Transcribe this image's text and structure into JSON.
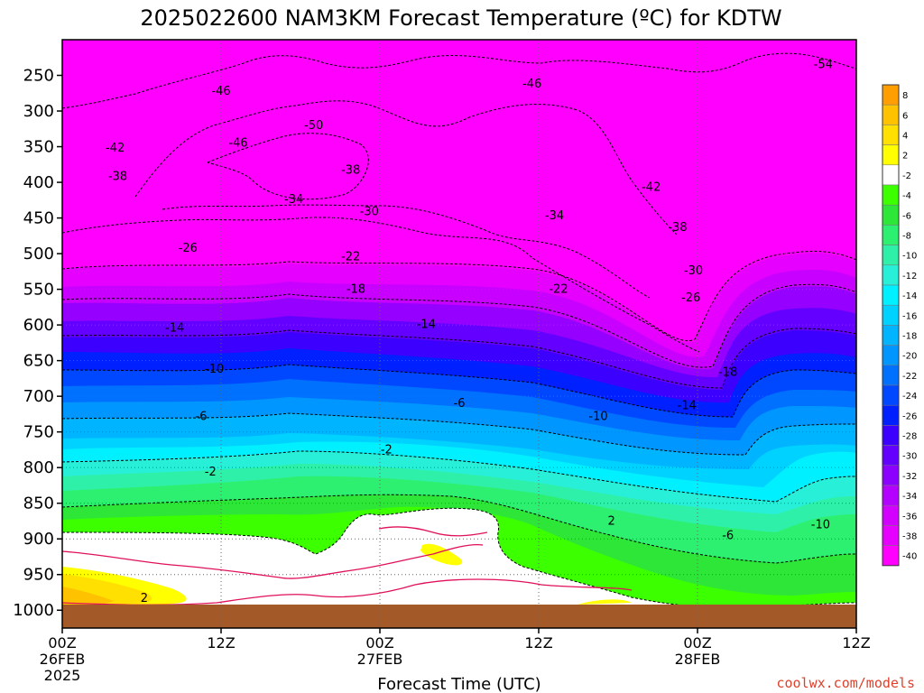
{
  "chart_data": {
    "type": "heatmap",
    "title": "2025022600 NAM3KM Forecast Temperature (ºC) for KDTW",
    "xlabel": "Forecast Time (UTC)",
    "ylabel": "",
    "x_ticks": [
      {
        "hour": 0,
        "lines": [
          "00Z",
          "26FEB",
          "2025"
        ]
      },
      {
        "hour": 12,
        "lines": [
          "12Z"
        ]
      },
      {
        "hour": 24,
        "lines": [
          "00Z",
          "27FEB"
        ]
      },
      {
        "hour": 36,
        "lines": [
          "12Z"
        ]
      },
      {
        "hour": 48,
        "lines": [
          "00Z",
          "28FEB"
        ]
      },
      {
        "hour": 60,
        "lines": [
          "12Z"
        ]
      }
    ],
    "xlim": [
      0,
      60
    ],
    "ylim": [
      1025,
      200
    ],
    "y_ticks": [
      250,
      300,
      350,
      400,
      450,
      500,
      550,
      600,
      650,
      700,
      750,
      800,
      850,
      900,
      950,
      1000
    ],
    "y_unit": "hPa",
    "colorbar": {
      "labels": [
        "8",
        "6",
        "4",
        "2",
        "-2",
        "-4",
        "-6",
        "-8",
        "-10",
        "-12",
        "-14",
        "-16",
        "-18",
        "-20",
        "-22",
        "-24",
        "-26",
        "-28",
        "-30",
        "-32",
        "-34",
        "-36",
        "-38",
        "-40"
      ],
      "colors": [
        "#ff9e00",
        "#ffc200",
        "#ffe000",
        "#ffff00",
        "#ffffff",
        "#3cff00",
        "#2ee638",
        "#2ef070",
        "#2ef0a8",
        "#28f0d8",
        "#00f0ff",
        "#00d2ff",
        "#00b4ff",
        "#0096ff",
        "#0070ff",
        "#0048ff",
        "#0020ff",
        "#3c00ff",
        "#6400ff",
        "#8c00ff",
        "#b400ff",
        "#d200ff",
        "#e600ff",
        "#ff00ff"
      ]
    },
    "isotherms": [
      {
        "label": "-54",
        "hour": 57.5,
        "p": 235
      },
      {
        "label": "-46",
        "hour": 12.0,
        "p": 272
      },
      {
        "label": "-46",
        "hour": 35.5,
        "p": 262
      },
      {
        "label": "-50",
        "hour": 19.0,
        "p": 320
      },
      {
        "label": "-46",
        "hour": 13.3,
        "p": 345
      },
      {
        "label": "-42",
        "hour": 4.0,
        "p": 352
      },
      {
        "label": "-38",
        "hour": 4.2,
        "p": 392
      },
      {
        "label": "-38",
        "hour": 21.8,
        "p": 383
      },
      {
        "label": "-42",
        "hour": 44.5,
        "p": 407
      },
      {
        "label": "-34",
        "hour": 17.5,
        "p": 424
      },
      {
        "label": "-30",
        "hour": 23.2,
        "p": 441
      },
      {
        "label": "-34",
        "hour": 37.2,
        "p": 447
      },
      {
        "label": "-38",
        "hour": 46.5,
        "p": 463
      },
      {
        "label": "-26",
        "hour": 9.5,
        "p": 492
      },
      {
        "label": "-22",
        "hour": 21.8,
        "p": 504
      },
      {
        "label": "-30",
        "hour": 47.7,
        "p": 524
      },
      {
        "label": "-18",
        "hour": 22.2,
        "p": 550
      },
      {
        "label": "-22",
        "hour": 37.5,
        "p": 550
      },
      {
        "label": "-26",
        "hour": 47.5,
        "p": 562
      },
      {
        "label": "-14",
        "hour": 8.5,
        "p": 604
      },
      {
        "label": "-14",
        "hour": 27.5,
        "p": 599
      },
      {
        "label": "-10",
        "hour": 11.5,
        "p": 662
      },
      {
        "label": "-18",
        "hour": 50.3,
        "p": 666
      },
      {
        "label": "-6",
        "hour": 10.5,
        "p": 728
      },
      {
        "label": "-6",
        "hour": 30.0,
        "p": 710
      },
      {
        "label": "-10",
        "hour": 40.5,
        "p": 728
      },
      {
        "label": "-14",
        "hour": 47.2,
        "p": 713
      },
      {
        "label": "-2",
        "hour": 11.2,
        "p": 806
      },
      {
        "label": "-2",
        "hour": 24.5,
        "p": 775
      },
      {
        "label": "-6",
        "hour": 50.3,
        "p": 895
      },
      {
        "label": "-10",
        "hour": 57.3,
        "p": 880
      },
      {
        "label": "2",
        "hour": 6.2,
        "p": 983
      },
      {
        "label": "2",
        "hour": 41.5,
        "p": 875
      }
    ],
    "credit": "coolwx.com/models"
  }
}
